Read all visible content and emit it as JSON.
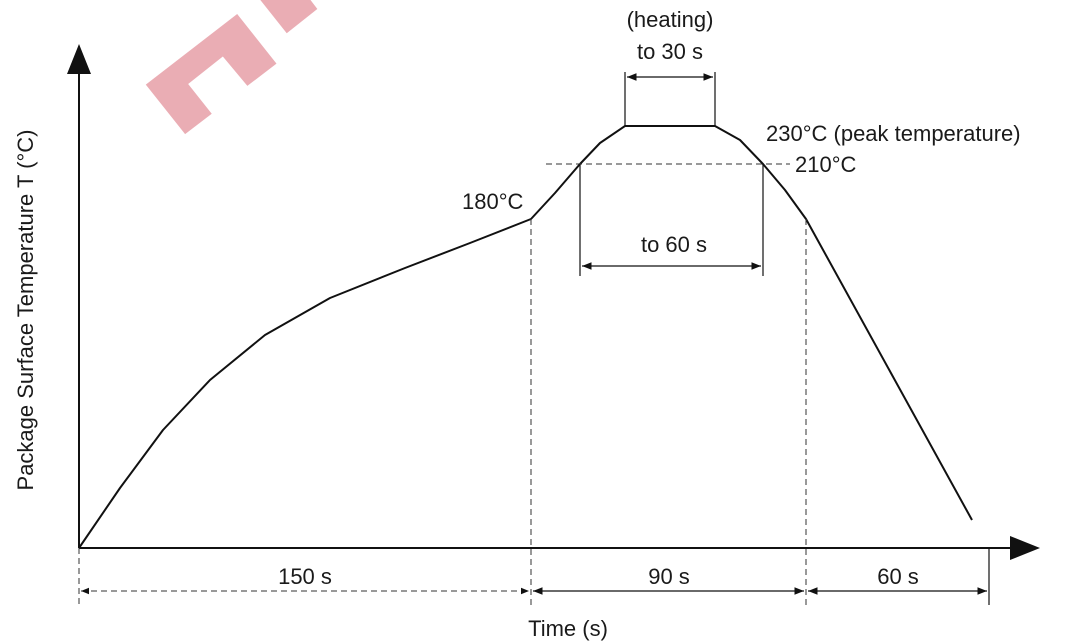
{
  "diagram": {
    "y_axis_label": "Package Surface Temperature T (°C)",
    "x_axis_label": "Time (s)",
    "labels": {
      "t180": "180°C",
      "t210": "210°C",
      "peak": "230°C (peak temperature)",
      "heating_line1": "(heating)",
      "heating_line2": "to 30 s",
      "to60": "to 60 s"
    },
    "phases": {
      "preheat": "150 s",
      "reflow": "90 s",
      "cooling": "60 s"
    },
    "watermark_color": "#e8a4ac",
    "line_color": "#111111"
  }
}
